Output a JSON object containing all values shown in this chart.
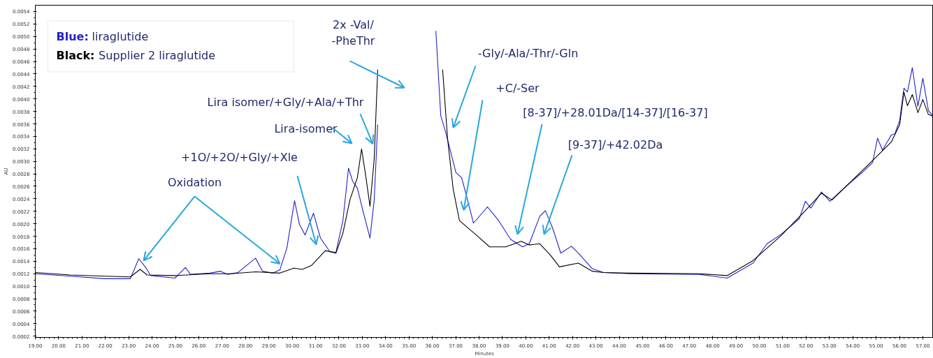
{
  "chart_data": {
    "type": "line",
    "xlabel": "Minutes",
    "ylabel": "AU",
    "xlim": [
      19,
      57.45
    ],
    "ylim": [
      0.00018,
      0.0055
    ],
    "xticks": [
      {
        "value": 19,
        "label": "19.00"
      },
      {
        "value": 20,
        "label": "20.00"
      },
      {
        "value": 21,
        "label": "21.00"
      },
      {
        "value": 22,
        "label": "22.00"
      },
      {
        "value": 23,
        "label": "23.00"
      },
      {
        "value": 24,
        "label": "24.00"
      },
      {
        "value": 25,
        "label": "25.00"
      },
      {
        "value": 26,
        "label": "26.00"
      },
      {
        "value": 27,
        "label": "27.00"
      },
      {
        "value": 28,
        "label": "28.00"
      },
      {
        "value": 29,
        "label": "29.00"
      },
      {
        "value": 30,
        "label": "30.00"
      },
      {
        "value": 31,
        "label": "31.00"
      },
      {
        "value": 32,
        "label": "32.00"
      },
      {
        "value": 33,
        "label": "33.00"
      },
      {
        "value": 34,
        "label": "34.00"
      },
      {
        "value": 35,
        "label": "35.00"
      },
      {
        "value": 36,
        "label": "36.00"
      },
      {
        "value": 37,
        "label": "37.00"
      },
      {
        "value": 38,
        "label": "38.00"
      },
      {
        "value": 39,
        "label": "39.00"
      },
      {
        "value": 40,
        "label": "40.00"
      },
      {
        "value": 41,
        "label": "41.00"
      },
      {
        "value": 42,
        "label": "42.00"
      },
      {
        "value": 43,
        "label": "43.00"
      },
      {
        "value": 44,
        "label": "44.00"
      },
      {
        "value": 45,
        "label": "45.00"
      },
      {
        "value": 46,
        "label": "46.00"
      },
      {
        "value": 47,
        "label": "47.00"
      },
      {
        "value": 48,
        "label": "48.00"
      },
      {
        "value": 49,
        "label": "49.00"
      },
      {
        "value": 50,
        "label": "50.00"
      },
      {
        "value": 51,
        "label": "51.00"
      },
      {
        "value": 52,
        "label": "52.00"
      },
      {
        "value": 53,
        "label": "53.00"
      },
      {
        "value": 54,
        "label": "54.00"
      },
      {
        "value": 55,
        "label": "55.00"
      },
      {
        "value": 56,
        "label": "56.00"
      },
      {
        "value": 57,
        "label": "57.00"
      }
    ],
    "yticks": [
      {
        "value": 0.0002,
        "label": "0.0002"
      },
      {
        "value": 0.0004,
        "label": "0.0004"
      },
      {
        "value": 0.0006,
        "label": "0.0006"
      },
      {
        "value": 0.0008,
        "label": "0.0008"
      },
      {
        "value": 0.001,
        "label": "0.0010"
      },
      {
        "value": 0.0012,
        "label": "0.0012"
      },
      {
        "value": 0.0014,
        "label": "0.0014"
      },
      {
        "value": 0.0016,
        "label": "0.0016"
      },
      {
        "value": 0.0018,
        "label": "0.0018"
      },
      {
        "value": 0.002,
        "label": "0.0020"
      },
      {
        "value": 0.0022,
        "label": "0.0022"
      },
      {
        "value": 0.0024,
        "label": "0.0024"
      },
      {
        "value": 0.0026,
        "label": "0.0026"
      },
      {
        "value": 0.0028,
        "label": "0.0028"
      },
      {
        "value": 0.003,
        "label": "0.0030"
      },
      {
        "value": 0.0032,
        "label": "0.0032"
      },
      {
        "value": 0.0034,
        "label": "0.0034"
      },
      {
        "value": 0.0036,
        "label": "0.0036"
      },
      {
        "value": 0.0038,
        "label": "0.0038"
      },
      {
        "value": 0.004,
        "label": "0.0040"
      },
      {
        "value": 0.0042,
        "label": "0.0042"
      },
      {
        "value": 0.0044,
        "label": "0.0044"
      },
      {
        "value": 0.0046,
        "label": "0.0046"
      },
      {
        "value": 0.0048,
        "label": "0.0048"
      },
      {
        "value": 0.005,
        "label": "0.0050"
      },
      {
        "value": 0.0052,
        "label": "0.0052"
      },
      {
        "value": 0.0054,
        "label": "0.0054"
      }
    ],
    "grid": false,
    "marker": "none",
    "line_style": "solid",
    "series": [
      {
        "color": "#2222cc",
        "x": [
          19.0,
          20.5,
          21.99,
          23.07,
          23.43,
          23.73,
          23.94,
          24.98,
          25.43,
          25.64,
          26.48,
          26.93,
          27.23,
          27.68,
          28.43,
          28.73,
          29.17,
          29.47,
          29.77,
          30.1,
          30.31,
          30.55,
          30.91,
          31.21,
          31.6,
          31.87,
          32.17,
          32.41,
          32.59,
          32.79,
          33.06,
          33.33,
          33.51,
          33.66,
          33.78,
          34.86,
          36.06,
          36.15,
          36.36,
          36.59,
          37.01,
          37.25,
          37.46,
          37.76,
          38.36,
          38.84,
          39.35,
          39.86,
          40.15,
          40.6,
          40.84,
          41.14,
          41.5,
          41.95,
          42.25,
          42.85,
          43.33,
          44.43,
          47.43,
          48.62,
          49.73,
          50.33,
          50.93,
          51.71,
          51.97,
          52.21,
          52.66,
          53.02,
          53.71,
          54.4,
          54.85,
          55.06,
          55.27,
          55.65,
          55.8,
          56.01,
          56.19,
          56.34,
          56.55,
          56.79,
          57.0,
          57.24,
          57.45
        ],
        "values": [
          0.0012,
          0.00116,
          0.00112,
          0.00112,
          0.00144,
          0.0013,
          0.00117,
          0.00113,
          0.0013,
          0.00119,
          0.00121,
          0.00124,
          0.00119,
          0.00122,
          0.00145,
          0.00124,
          0.00121,
          0.00126,
          0.00161,
          0.00237,
          0.00199,
          0.00182,
          0.00217,
          0.00177,
          0.00156,
          0.00154,
          0.00205,
          0.00289,
          0.00268,
          0.00257,
          0.00216,
          0.00177,
          0.00238,
          0.00359,
          null,
          null,
          null,
          0.00509,
          0.00373,
          0.00344,
          0.00282,
          0.00274,
          0.00245,
          0.00201,
          0.00227,
          0.00205,
          0.00175,
          0.00163,
          0.00168,
          0.00212,
          0.00221,
          0.00194,
          0.00153,
          0.00164,
          0.00153,
          0.00128,
          0.00122,
          0.0012,
          0.00119,
          0.00113,
          0.00137,
          0.00168,
          0.00183,
          0.00208,
          0.00236,
          0.00225,
          0.00251,
          0.00236,
          0.0026,
          0.00282,
          0.00298,
          0.00337,
          0.00318,
          0.00342,
          0.00344,
          0.00366,
          0.00417,
          0.00411,
          0.0045,
          0.00388,
          0.00433,
          0.00381,
          0.00372
        ]
      },
      {
        "color": "#000000",
        "x": [
          19.0,
          20.5,
          21.99,
          23.07,
          23.49,
          23.79,
          24.98,
          26.48,
          27.38,
          28.43,
          29.47,
          30.07,
          30.43,
          30.82,
          31.42,
          31.87,
          32.17,
          32.47,
          32.79,
          32.97,
          33.15,
          33.33,
          33.51,
          33.66,
          33.81,
          34.86,
          36.27,
          36.44,
          36.65,
          36.89,
          37.16,
          37.85,
          38.45,
          39.14,
          39.8,
          40.15,
          40.6,
          41.05,
          41.44,
          42.25,
          42.85,
          43.33,
          44.43,
          47.43,
          48.62,
          49.73,
          50.93,
          51.97,
          52.66,
          53.11,
          55.06,
          55.65,
          56.01,
          56.19,
          56.34,
          56.55,
          56.79,
          57.0,
          57.24,
          57.45
        ],
        "values": [
          0.00122,
          0.00118,
          0.00116,
          0.00115,
          0.00127,
          0.00118,
          0.00117,
          0.0012,
          0.0012,
          0.00123,
          0.00121,
          0.00129,
          0.00127,
          0.00133,
          0.00157,
          0.00153,
          0.00185,
          0.00238,
          0.00274,
          0.0032,
          0.00276,
          0.00228,
          0.00304,
          0.00447,
          null,
          null,
          null,
          0.00447,
          0.00337,
          0.00256,
          0.00205,
          0.00183,
          0.00163,
          0.00163,
          0.00172,
          0.00166,
          0.00168,
          0.0015,
          0.00131,
          0.00137,
          0.00124,
          0.00122,
          0.00121,
          0.0012,
          0.00117,
          0.00141,
          0.00181,
          0.00221,
          0.00249,
          0.00238,
          0.00309,
          0.00331,
          0.00359,
          0.00411,
          0.00389,
          0.00407,
          0.00378,
          0.00399,
          0.00375,
          0.00372
        ]
      }
    ],
    "annotations": [
      "Blue: liraglutide",
      "Black: Supplier 2 liraglutide",
      {
        "text": "Oxidation",
        "x": 23.64,
        "y": 0.00141
      },
      "+1O/+2O/+Gly/+Xle",
      "Lira-isomer",
      {
        "text": "Lira isomer/+Gly/+Ala/+Thr",
        "x": 33.45,
        "y": 0.00328
      },
      "2x -Val/\n-PheThr",
      "-Gly/-Ala/-Thr/-Gln",
      "+C/-Ser",
      "[8-37]/+28.01Da/[14-37]/[16-37]",
      "[9-37]/+42.02Da"
    ]
  }
}
